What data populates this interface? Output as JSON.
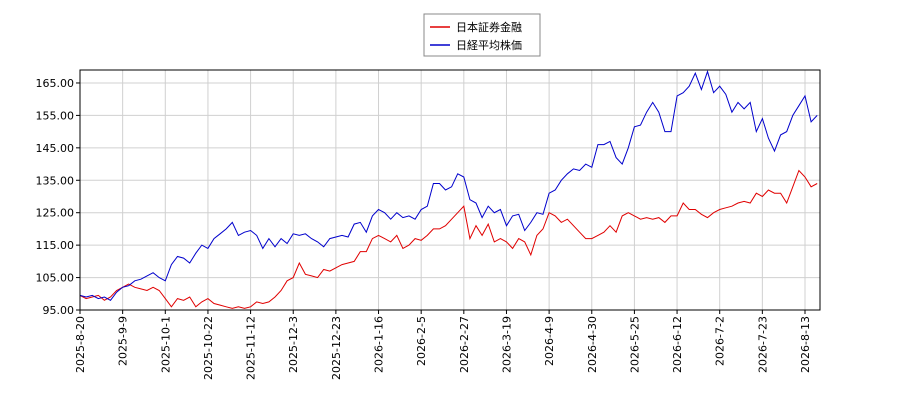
{
  "chart_data": {
    "type": "line",
    "categories": [
      "2025-8-20",
      null,
      null,
      null,
      null,
      null,
      null,
      "2025-9-9",
      null,
      null,
      null,
      null,
      null,
      null,
      "2025-10-1",
      null,
      null,
      null,
      null,
      null,
      null,
      "2025-10-22",
      null,
      null,
      null,
      null,
      null,
      null,
      "2025-11-12",
      null,
      null,
      null,
      null,
      null,
      null,
      "2025-12-3",
      null,
      null,
      null,
      null,
      null,
      null,
      "2025-12-23",
      null,
      null,
      null,
      null,
      null,
      null,
      "2026-1-16",
      null,
      null,
      null,
      null,
      null,
      null,
      "2026-2-5",
      null,
      null,
      null,
      null,
      null,
      null,
      "2026-2-27",
      null,
      null,
      null,
      null,
      null,
      null,
      "2026-3-19",
      null,
      null,
      null,
      null,
      null,
      null,
      "2026-4-9",
      null,
      null,
      null,
      null,
      null,
      null,
      "2026-4-30",
      null,
      null,
      null,
      null,
      null,
      null,
      "2026-5-25",
      null,
      null,
      null,
      null,
      null,
      null,
      "2026-6-12",
      null,
      null,
      null,
      null,
      null,
      null,
      "2026-7-2",
      null,
      null,
      null,
      null,
      null,
      null,
      "2026-7-23",
      null,
      null,
      null,
      null,
      null,
      null,
      "2026-8-13",
      null,
      null
    ],
    "series": [
      {
        "name": "日本証券金融",
        "color": "#e00000",
        "values": [
          99.5,
          98.5,
          99,
          99.5,
          98,
          99,
          101,
          102,
          103,
          102,
          101.5,
          101,
          102,
          101,
          98.5,
          96,
          98.5,
          98,
          99,
          96,
          97.5,
          98.5,
          97,
          96.5,
          96,
          95.5,
          96,
          95.5,
          96,
          97.5,
          97,
          97.5,
          99,
          101,
          104,
          105,
          109.5,
          106,
          105.5,
          105,
          107.5,
          107,
          108,
          109,
          109.5,
          110,
          113,
          113,
          117,
          118,
          117,
          116,
          118,
          114,
          115,
          117,
          116.5,
          118,
          120,
          120,
          121,
          123,
          125,
          127,
          117,
          121,
          118,
          121.5,
          116,
          117,
          116,
          114,
          117,
          116,
          112,
          118,
          120,
          125,
          124,
          122,
          123,
          121,
          119,
          117,
          117,
          118,
          119,
          121,
          119,
          124,
          125,
          124,
          123,
          123.5,
          123,
          123.5,
          122,
          124,
          124,
          128,
          126,
          126,
          124.5,
          123.5,
          125,
          126,
          126.5,
          127,
          128,
          128.5,
          128,
          131,
          130,
          132,
          131,
          131,
          128,
          133,
          138,
          136,
          133,
          134
        ]
      },
      {
        "name": "日経平均株価",
        "color": "#0000cc",
        "values": [
          99.5,
          99,
          99.5,
          98.5,
          99,
          98,
          100.5,
          102,
          102.5,
          104,
          104.5,
          105.5,
          106.5,
          105,
          104,
          109,
          111.5,
          111,
          109.5,
          112.5,
          115,
          114,
          117,
          118.5,
          120,
          122,
          118,
          119,
          119.5,
          118,
          114,
          117,
          114.5,
          117,
          115.5,
          118.5,
          118,
          118.5,
          117,
          116,
          114.5,
          117,
          117.5,
          118,
          117.5,
          121.5,
          122,
          119,
          124,
          126,
          125,
          123,
          125,
          123.5,
          124,
          123,
          126,
          127,
          134,
          134,
          132,
          133,
          137,
          136,
          129,
          128,
          123.5,
          127,
          125,
          126,
          121,
          124,
          124.5,
          119.5,
          122,
          125,
          124.5,
          131,
          132,
          135,
          137,
          138.5,
          138,
          140,
          139,
          146,
          146,
          147,
          142,
          140,
          145,
          151.5,
          152,
          156,
          159,
          156,
          150,
          150,
          161,
          162,
          164,
          168,
          163,
          168.5,
          162,
          164,
          161.5,
          156,
          159,
          157,
          159,
          150,
          154,
          148,
          144,
          149,
          150,
          155,
          158,
          161,
          153,
          155
        ]
      }
    ],
    "ylim": [
      95,
      169
    ],
    "yticks": [
      {
        "value": 95,
        "label": "95.00"
      },
      {
        "value": 105,
        "label": "105.00"
      },
      {
        "value": 115,
        "label": "115.00"
      },
      {
        "value": 125,
        "label": "125.00"
      },
      {
        "value": 135,
        "label": "135.00"
      },
      {
        "value": 145,
        "label": "145.00"
      },
      {
        "value": 155,
        "label": "155.00"
      },
      {
        "value": 165,
        "label": "165.00"
      }
    ],
    "grid": true
  }
}
